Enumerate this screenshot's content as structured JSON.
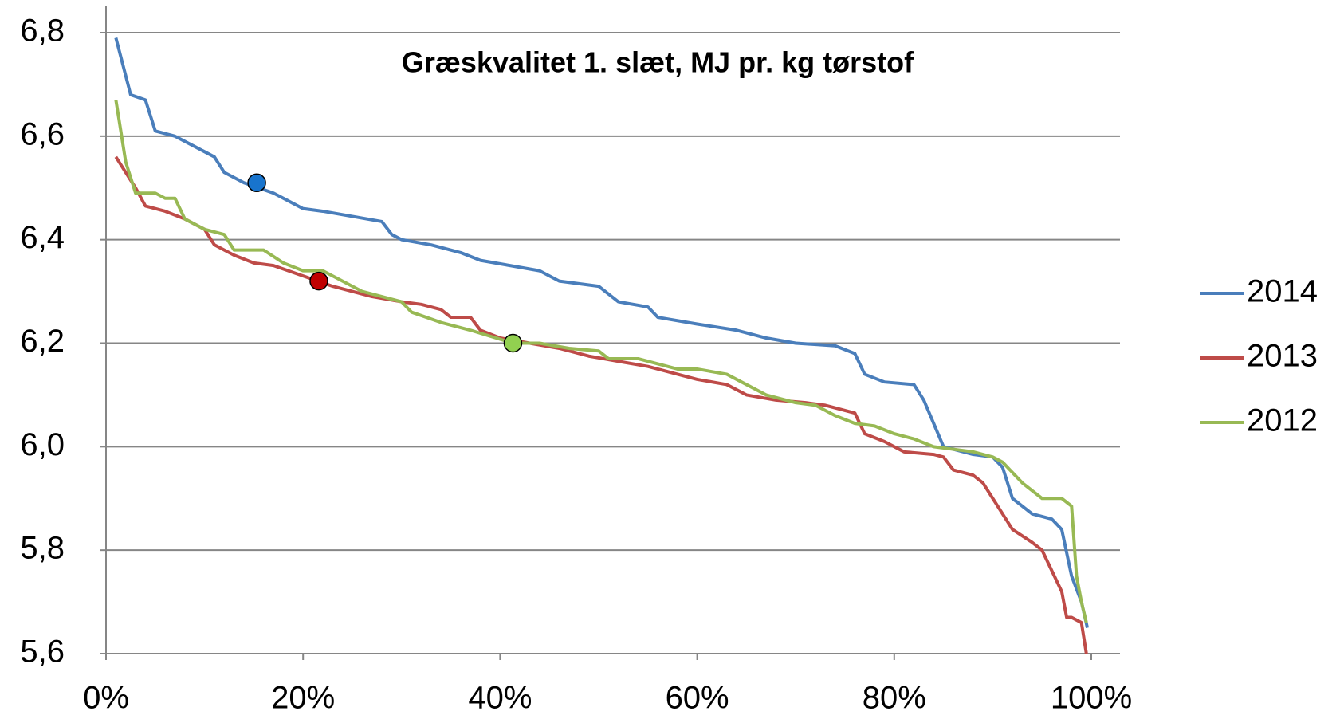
{
  "chart_data": {
    "type": "line",
    "title": "Græskvalitet 1. slæt, MJ pr. kg tørstof",
    "xlim": [
      0,
      100
    ],
    "ylim": [
      5.6,
      6.8
    ],
    "xticks": [
      {
        "value": 0,
        "label": "0%"
      },
      {
        "value": 20,
        "label": "20%"
      },
      {
        "value": 40,
        "label": "40%"
      },
      {
        "value": 60,
        "label": "60%"
      },
      {
        "value": 80,
        "label": "80%"
      },
      {
        "value": 100,
        "label": "100%"
      }
    ],
    "yticks": [
      {
        "value": 5.6,
        "label": "5,6"
      },
      {
        "value": 5.8,
        "label": "5,8"
      },
      {
        "value": 6.0,
        "label": "6,0"
      },
      {
        "value": 6.2,
        "label": "6,2"
      },
      {
        "value": 6.4,
        "label": "6,4"
      },
      {
        "value": 6.6,
        "label": "6,6"
      },
      {
        "value": 6.8,
        "label": "6,8"
      }
    ],
    "grid": true,
    "legend": "right",
    "series": [
      {
        "name": "2014",
        "color": "#4a7ebb",
        "x": [
          1,
          2.5,
          4,
          5,
          7,
          9,
          11,
          12,
          14,
          17,
          20,
          22,
          25,
          28,
          29,
          30,
          33,
          36,
          38,
          41,
          44,
          46,
          50,
          52,
          55,
          56,
          60,
          64,
          67,
          70,
          74,
          76,
          77,
          79,
          82,
          83,
          85,
          88,
          90,
          91,
          92,
          94,
          96,
          97,
          98,
          99,
          99.6
        ],
        "values": [
          6.79,
          6.68,
          6.67,
          6.61,
          6.6,
          6.58,
          6.56,
          6.53,
          6.51,
          6.49,
          6.46,
          6.455,
          6.445,
          6.435,
          6.41,
          6.4,
          6.39,
          6.375,
          6.36,
          6.35,
          6.34,
          6.32,
          6.31,
          6.28,
          6.27,
          6.25,
          6.237,
          6.225,
          6.21,
          6.2,
          6.195,
          6.18,
          6.14,
          6.125,
          6.12,
          6.09,
          6.0,
          5.985,
          5.98,
          5.96,
          5.9,
          5.87,
          5.86,
          5.84,
          5.75,
          5.7,
          5.65
        ],
        "highlight": {
          "x": 15.3,
          "y": 6.51,
          "color": "#1874cd"
        }
      },
      {
        "name": "2013",
        "color": "#be4b48",
        "x": [
          1,
          2,
          3,
          4,
          6,
          8,
          10,
          11,
          13,
          15,
          17,
          20,
          21.5,
          23,
          25,
          27,
          30,
          32,
          34,
          35,
          37,
          38,
          40,
          43,
          46,
          49,
          52,
          55,
          58,
          60,
          63,
          65,
          68,
          71,
          73,
          75,
          76,
          77,
          79,
          81,
          84,
          85,
          86,
          88,
          89,
          90,
          92,
          94,
          95,
          96,
          97,
          97.5,
          98,
          99,
          99.5
        ],
        "values": [
          6.56,
          6.53,
          6.5,
          6.465,
          6.455,
          6.44,
          6.42,
          6.39,
          6.37,
          6.355,
          6.35,
          6.33,
          6.32,
          6.31,
          6.3,
          6.29,
          6.28,
          6.275,
          6.265,
          6.25,
          6.25,
          6.225,
          6.21,
          6.2,
          6.19,
          6.175,
          6.165,
          6.155,
          6.14,
          6.13,
          6.12,
          6.1,
          6.09,
          6.085,
          6.08,
          6.07,
          6.065,
          6.025,
          6.01,
          5.99,
          5.985,
          5.98,
          5.955,
          5.945,
          5.93,
          5.9,
          5.84,
          5.815,
          5.8,
          5.76,
          5.72,
          5.67,
          5.67,
          5.66,
          5.6
        ],
        "highlight": {
          "x": 21.6,
          "y": 6.32,
          "color": "#c00000"
        }
      },
      {
        "name": "2012",
        "color": "#98b954",
        "x": [
          1,
          2,
          3,
          5,
          6,
          7,
          8,
          10,
          12,
          13,
          16,
          18,
          20,
          22,
          24,
          26,
          28,
          30,
          31,
          34,
          37,
          41.3,
          44,
          47,
          50,
          51,
          54,
          56,
          58,
          60,
          63,
          65,
          67,
          70,
          72,
          74,
          76,
          78,
          80,
          82,
          84,
          88,
          90,
          91,
          92,
          93,
          95,
          97,
          98,
          98.5,
          99,
          99.5
        ],
        "values": [
          6.67,
          6.55,
          6.49,
          6.49,
          6.48,
          6.48,
          6.44,
          6.42,
          6.41,
          6.38,
          6.38,
          6.355,
          6.34,
          6.34,
          6.32,
          6.3,
          6.29,
          6.28,
          6.26,
          6.24,
          6.225,
          6.2,
          6.2,
          6.19,
          6.185,
          6.17,
          6.17,
          6.16,
          6.15,
          6.15,
          6.14,
          6.12,
          6.1,
          6.085,
          6.08,
          6.06,
          6.045,
          6.04,
          6.025,
          6.015,
          6.0,
          5.99,
          5.98,
          5.97,
          5.95,
          5.93,
          5.9,
          5.9,
          5.885,
          5.75,
          5.7,
          5.66
        ],
        "highlight": {
          "x": 41.3,
          "y": 6.2,
          "color": "#92d050"
        }
      }
    ]
  }
}
